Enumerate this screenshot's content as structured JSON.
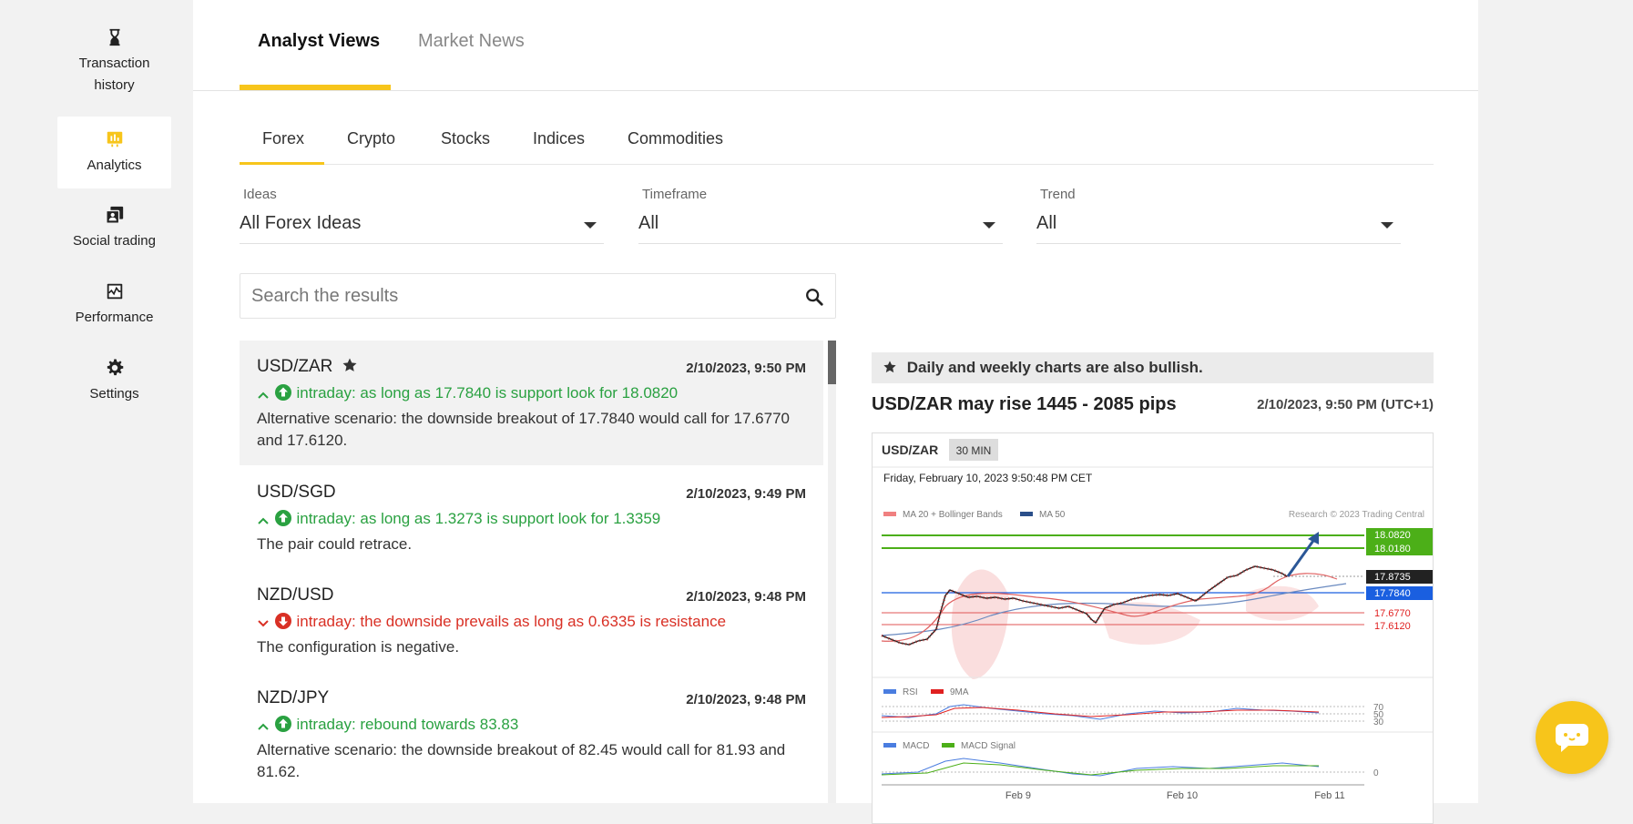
{
  "sidebar": {
    "items": [
      {
        "label": "Transaction history",
        "icon": "hourglass-icon"
      },
      {
        "label": "Analytics",
        "icon": "analytics-icon",
        "active": true
      },
      {
        "label": "Social trading",
        "icon": "social-trading-icon"
      },
      {
        "label": "Performance",
        "icon": "performance-icon"
      },
      {
        "label": "Settings",
        "icon": "gear-icon"
      }
    ]
  },
  "top_tabs": [
    {
      "label": "Analyst Views",
      "active": true
    },
    {
      "label": "Market News",
      "active": false
    }
  ],
  "sub_tabs": [
    {
      "label": "Forex",
      "active": true
    },
    {
      "label": "Crypto"
    },
    {
      "label": "Stocks"
    },
    {
      "label": "Indices"
    },
    {
      "label": "Commodities"
    }
  ],
  "filters": {
    "ideas": {
      "label": "Ideas",
      "value": "All Forex Ideas"
    },
    "timeframe": {
      "label": "Timeframe",
      "value": "All"
    },
    "trend": {
      "label": "Trend",
      "value": "All"
    }
  },
  "search": {
    "placeholder": "Search the results"
  },
  "ideas": [
    {
      "pair": "USD/ZAR",
      "date": "2/10/2023, 9:50 PM",
      "direction": "up",
      "signal": "intraday: as long as 17.7840 is support look for 18.0820",
      "desc": "Alternative scenario: the downside breakout of 17.7840 would call for 17.6770 and 17.6120."
    },
    {
      "pair": "USD/SGD",
      "date": "2/10/2023, 9:49 PM",
      "direction": "up",
      "signal": "intraday: as long as 1.3273 is support look for 1.3359",
      "desc": "The pair could retrace."
    },
    {
      "pair": "NZD/USD",
      "date": "2/10/2023, 9:48 PM",
      "direction": "down",
      "signal": "intraday: the downside prevails as long as 0.6335 is resistance",
      "desc": "The configuration is negative."
    },
    {
      "pair": "NZD/JPY",
      "date": "2/10/2023, 9:48 PM",
      "direction": "up",
      "signal": "intraday: rebound towards 83.83",
      "desc": "Alternative scenario: the downside breakout of 82.45 would call for 81.93 and 81.62."
    }
  ],
  "detail": {
    "banner": "Daily and weekly charts are also bullish.",
    "headline": "USD/ZAR may rise 1445 - 2085 pips",
    "date": "2/10/2023, 9:50 PM (UTC+1)",
    "chart": {
      "symbol": "USD/ZAR",
      "timeframe": "30 MIN",
      "timestamp": "Friday, February 10, 2023 9:50:48 PM CET",
      "legend_ma20": "MA 20 + Bollinger Bands",
      "legend_ma50": "MA 50",
      "credit": "Research © 2023 Trading Central",
      "levels": {
        "target_1": "18.0820",
        "target_2": "18.0180",
        "last": "17.8735",
        "pivot": "17.7840",
        "support_1": "17.6770",
        "support_2": "17.6120"
      },
      "rsi_legend": "RSI",
      "rsi_ma_legend": "9MA",
      "rsi_ticks": [
        "70",
        "50",
        "30"
      ],
      "macd_legend": "MACD",
      "macd_signal_legend": "MACD Signal",
      "macd_tick": "0",
      "x_ticks": [
        "Feb 9",
        "Feb 10",
        "Feb 11"
      ]
    }
  },
  "colors": {
    "accent": "#f7c51b",
    "up": "#2aa141",
    "down": "#d93025",
    "target": "#4caf18",
    "pivot": "#1a5fe0"
  }
}
